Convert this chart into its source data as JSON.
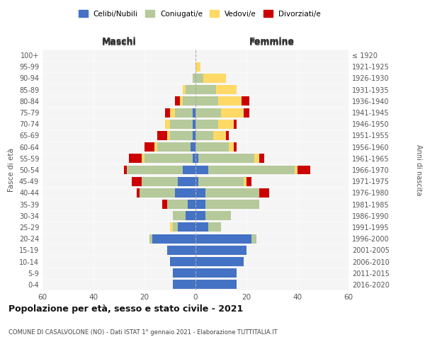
{
  "age_groups": [
    "0-4",
    "5-9",
    "10-14",
    "15-19",
    "20-24",
    "25-29",
    "30-34",
    "35-39",
    "40-44",
    "45-49",
    "50-54",
    "55-59",
    "60-64",
    "65-69",
    "70-74",
    "75-79",
    "80-84",
    "85-89",
    "90-94",
    "95-99",
    "100+"
  ],
  "birth_years": [
    "2016-2020",
    "2011-2015",
    "2006-2010",
    "2001-2005",
    "1996-2000",
    "1991-1995",
    "1986-1990",
    "1981-1985",
    "1976-1980",
    "1971-1975",
    "1966-1970",
    "1961-1965",
    "1956-1960",
    "1951-1955",
    "1946-1950",
    "1941-1945",
    "1936-1940",
    "1931-1935",
    "1926-1930",
    "1921-1925",
    "≤ 1920"
  ],
  "maschi": {
    "celibi": [
      9,
      9,
      10,
      11,
      17,
      7,
      4,
      3,
      8,
      7,
      5,
      1,
      2,
      1,
      1,
      1,
      0,
      0,
      0,
      0,
      0
    ],
    "coniugati": [
      0,
      0,
      0,
      0,
      1,
      2,
      5,
      8,
      14,
      14,
      22,
      19,
      13,
      9,
      9,
      7,
      5,
      4,
      1,
      0,
      0
    ],
    "vedovi": [
      0,
      0,
      0,
      0,
      0,
      1,
      0,
      0,
      0,
      0,
      0,
      1,
      1,
      1,
      2,
      2,
      1,
      1,
      0,
      0,
      0
    ],
    "divorziati": [
      0,
      0,
      0,
      0,
      0,
      0,
      0,
      2,
      1,
      4,
      1,
      5,
      4,
      4,
      0,
      2,
      2,
      0,
      0,
      0,
      0
    ]
  },
  "femmine": {
    "nubili": [
      16,
      16,
      19,
      20,
      22,
      5,
      4,
      4,
      4,
      1,
      5,
      1,
      0,
      0,
      0,
      0,
      0,
      0,
      0,
      0,
      0
    ],
    "coniugate": [
      0,
      0,
      0,
      0,
      2,
      5,
      10,
      21,
      21,
      18,
      34,
      22,
      13,
      7,
      9,
      10,
      9,
      8,
      3,
      0,
      0
    ],
    "vedove": [
      0,
      0,
      0,
      0,
      0,
      0,
      0,
      0,
      0,
      1,
      1,
      2,
      2,
      5,
      6,
      9,
      9,
      8,
      9,
      2,
      0
    ],
    "divorziate": [
      0,
      0,
      0,
      0,
      0,
      0,
      0,
      0,
      4,
      2,
      5,
      2,
      1,
      1,
      1,
      2,
      3,
      0,
      0,
      0,
      0
    ]
  },
  "colors": {
    "celibi": "#4472c4",
    "coniugati": "#b5c99a",
    "vedovi": "#ffd966",
    "divorziati": "#cc0000"
  },
  "xlim": 60,
  "title": "Popolazione per età, sesso e stato civile - 2021",
  "subtitle": "COMUNE DI CASALVOLONE (NO) - Dati ISTAT 1° gennaio 2021 - Elaborazione TUTTITALIA.IT",
  "legend_labels": [
    "Celibi/Nubili",
    "Coniugati/e",
    "Vedovi/e",
    "Divorziati/e"
  ],
  "maschi_label": "Maschi",
  "femmine_label": "Femmine",
  "fascia_label": "Fasce di età",
  "anni_label": "Anni di nascita",
  "bg_color": "#f5f5f5"
}
